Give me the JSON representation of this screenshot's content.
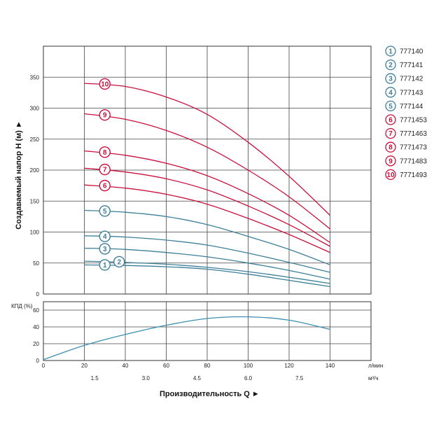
{
  "chart_data": [
    {
      "type": "line",
      "ylabel": "Создаваемый напор H (м) ►",
      "ylim": [
        0,
        400
      ],
      "yticks": [
        0,
        50,
        100,
        150,
        200,
        250,
        300,
        350
      ],
      "x_lpm_range": [
        0,
        160
      ],
      "grid": "vertical and horizontal",
      "legend_position": "right",
      "series": [
        {
          "id": "1",
          "label": "777140",
          "color": "#3c7f99",
          "x": [
            20,
            40,
            60,
            80,
            100,
            120,
            140
          ],
          "y": [
            47,
            46,
            44,
            40,
            32,
            22,
            12
          ]
        },
        {
          "id": "2",
          "label": "777141",
          "color": "#3c7f99",
          "x": [
            20,
            40,
            60,
            80,
            100,
            120,
            140
          ],
          "y": [
            53,
            51,
            48,
            43,
            36,
            27,
            17
          ]
        },
        {
          "id": "3",
          "label": "777142",
          "color": "#3c7f99",
          "x": [
            20,
            40,
            60,
            80,
            100,
            120,
            140
          ],
          "y": [
            74,
            72,
            67,
            60,
            50,
            38,
            24
          ]
        },
        {
          "id": "4",
          "label": "777143",
          "color": "#3c7f99",
          "x": [
            20,
            40,
            60,
            80,
            100,
            120,
            140
          ],
          "y": [
            94,
            92,
            87,
            79,
            66,
            51,
            35
          ]
        },
        {
          "id": "5",
          "label": "777144",
          "color": "#3c7f99",
          "x": [
            20,
            40,
            60,
            80,
            100,
            120,
            140
          ],
          "y": [
            135,
            132,
            125,
            112,
            93,
            72,
            47
          ]
        },
        {
          "id": "6",
          "label": "7771453",
          "color": "#c8103a",
          "x": [
            20,
            40,
            60,
            80,
            100,
            120,
            140
          ],
          "y": [
            176,
            171,
            161,
            145,
            122,
            96,
            67
          ]
        },
        {
          "id": "7",
          "label": "7771463",
          "color": "#c8103a",
          "x": [
            20,
            40,
            60,
            80,
            100,
            120,
            140
          ],
          "y": [
            203,
            197,
            186,
            168,
            142,
            112,
            77
          ]
        },
        {
          "id": "8",
          "label": "7771473",
          "color": "#c8103a",
          "x": [
            20,
            40,
            60,
            80,
            100,
            120,
            140
          ],
          "y": [
            231,
            224,
            211,
            191,
            162,
            127,
            83
          ]
        },
        {
          "id": "9",
          "label": "7771483",
          "color": "#c8103a",
          "x": [
            20,
            40,
            60,
            80,
            100,
            120,
            140
          ],
          "y": [
            291,
            282,
            264,
            237,
            200,
            157,
            105
          ]
        },
        {
          "id": "10",
          "label": "7771493",
          "color": "#c8103a",
          "x": [
            20,
            40,
            60,
            80,
            100,
            120,
            140
          ],
          "y": [
            340,
            335,
            318,
            290,
            245,
            190,
            127
          ]
        }
      ],
      "badges": [
        {
          "id": "1",
          "x": 30,
          "y": 47,
          "color": "#3c7f99"
        },
        {
          "id": "2",
          "x": 37,
          "y": 52,
          "color": "#3c7f99"
        },
        {
          "id": "3",
          "x": 30,
          "y": 73,
          "color": "#3c7f99"
        },
        {
          "id": "4",
          "x": 30,
          "y": 93,
          "color": "#3c7f99"
        },
        {
          "id": "5",
          "x": 30,
          "y": 134,
          "color": "#3c7f99"
        },
        {
          "id": "6",
          "x": 30,
          "y": 175,
          "color": "#c8103a"
        },
        {
          "id": "7",
          "x": 30,
          "y": 201,
          "color": "#c8103a"
        },
        {
          "id": "8",
          "x": 30,
          "y": 229,
          "color": "#c8103a"
        },
        {
          "id": "9",
          "x": 30,
          "y": 289,
          "color": "#c8103a"
        },
        {
          "id": "10",
          "x": 30,
          "y": 339,
          "color": "#c8103a"
        }
      ]
    },
    {
      "type": "line",
      "ylabel": "КПД (%)",
      "ylim": [
        0,
        70
      ],
      "yticks": [
        0,
        20,
        40,
        60
      ],
      "series": [
        {
          "label": "КПД",
          "color": "#3c8fb0",
          "x": [
            0,
            20,
            40,
            60,
            80,
            100,
            120,
            140
          ],
          "y": [
            1,
            18,
            31,
            42,
            50,
            52,
            48,
            37
          ]
        }
      ]
    }
  ],
  "axis": {
    "x_lpm_ticks": [
      "0",
      "20",
      "40",
      "60",
      "80",
      "100",
      "120",
      "140"
    ],
    "x_lpm_values": [
      0,
      20,
      40,
      60,
      80,
      100,
      120,
      140
    ],
    "x_lpm_unit": "л/мин",
    "x_m3h_ticks": [
      "1.5",
      "3.0",
      "4.5",
      "6.0",
      "7.5"
    ],
    "x_m3h_values": [
      25,
      50,
      75,
      100,
      125
    ],
    "x_m3h_unit": "м³/ч",
    "xlabel": "Производительность Q ►"
  },
  "legend": [
    {
      "id": "1",
      "label": "777140",
      "color": "#3c7f99"
    },
    {
      "id": "2",
      "label": "777141",
      "color": "#3c7f99"
    },
    {
      "id": "3",
      "label": "777142",
      "color": "#3c7f99"
    },
    {
      "id": "4",
      "label": "777143",
      "color": "#3c7f99"
    },
    {
      "id": "5",
      "label": "777144",
      "color": "#3c7f99"
    },
    {
      "id": "6",
      "label": "7771453",
      "color": "#c8103a"
    },
    {
      "id": "7",
      "label": "7771463",
      "color": "#c8103a"
    },
    {
      "id": "8",
      "label": "7771473",
      "color": "#c8103a"
    },
    {
      "id": "9",
      "label": "7771483",
      "color": "#c8103a"
    },
    {
      "id": "10",
      "label": "7771493",
      "color": "#c8103a"
    }
  ]
}
